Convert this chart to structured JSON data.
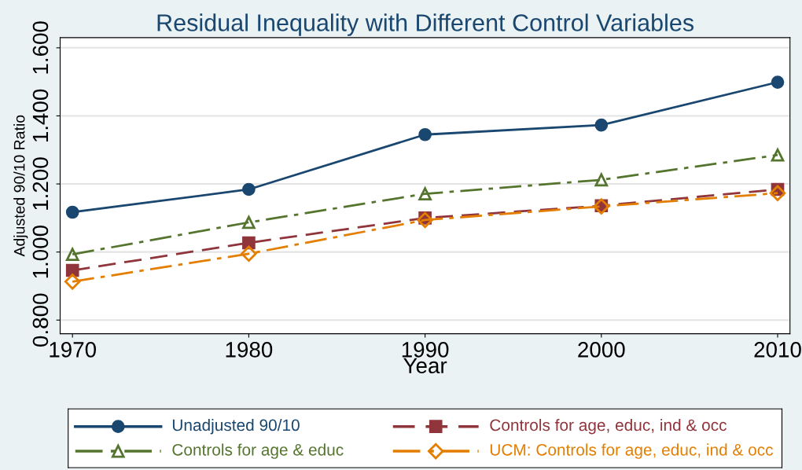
{
  "chart_data": {
    "type": "line",
    "title": "Residual Inequality with Different Control Variables",
    "xlabel": "Year",
    "ylabel": "Adjusted 90/10 Ratio",
    "x": [
      1970,
      1980,
      1990,
      2000,
      2010
    ],
    "series": [
      {
        "name": "Unadjusted 90/10",
        "color": "#1a476f",
        "marker": "circle",
        "line_style": "solid",
        "values": [
          1.117,
          1.184,
          1.345,
          1.373,
          1.499
        ]
      },
      {
        "name": "Controls for age, educ, ind & occ",
        "color": "#90353b",
        "marker": "square",
        "line_style": "dashed",
        "values": [
          0.946,
          1.027,
          1.1,
          1.136,
          1.184
        ]
      },
      {
        "name": "Controls for age & educ",
        "color": "#55752f",
        "marker": "triangle",
        "line_style": "dashdot",
        "values": [
          0.993,
          1.087,
          1.171,
          1.212,
          1.285
        ]
      },
      {
        "name": "UCM: Controls for age, educ, ind & occ",
        "color": "#e37e00",
        "marker": "diamond",
        "line_style": "dashdot",
        "values": [
          0.913,
          0.995,
          1.094,
          1.134,
          1.173
        ]
      }
    ],
    "xlim": [
      1969.3,
      2010.7
    ],
    "xticks": [
      1970,
      1980,
      1990,
      2000,
      2010
    ],
    "ylim": [
      0.76,
      1.63
    ],
    "yticks": [
      {
        "value": 0.8,
        "label": "0.800"
      },
      {
        "value": 1.0,
        "label": "1.000"
      },
      {
        "value": 1.2,
        "label": "1.200"
      },
      {
        "value": 1.4,
        "label": "1.400"
      },
      {
        "value": 1.6,
        "label": "1.600"
      }
    ],
    "grid": "y",
    "legend": "bottom"
  }
}
